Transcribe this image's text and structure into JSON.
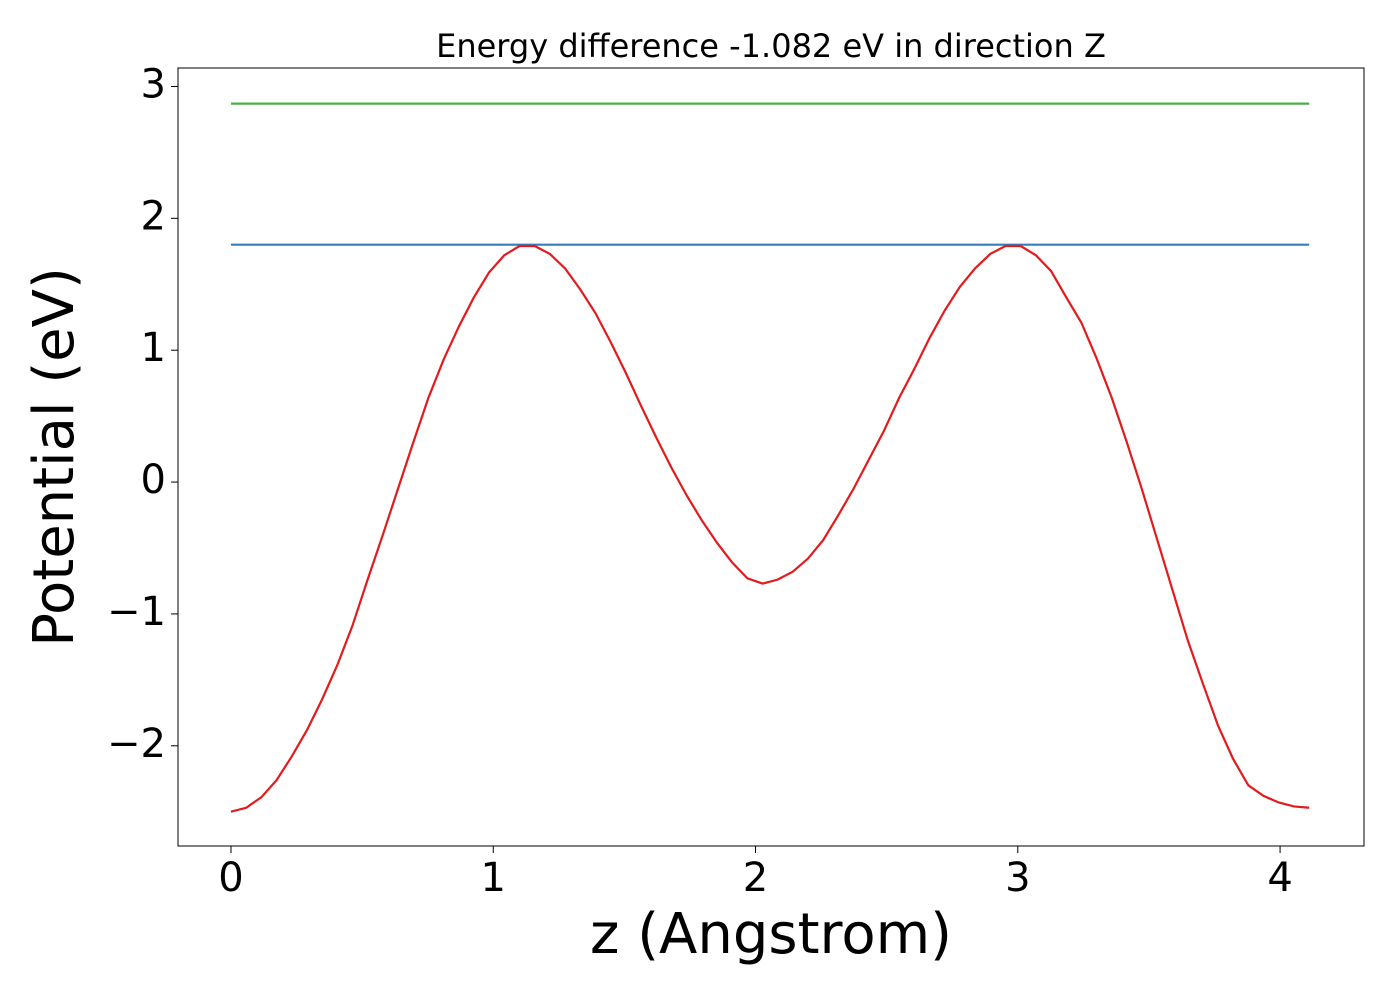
{
  "chart_data": {
    "type": "line",
    "title": "Energy difference -1.082 eV in direction Z",
    "x_label": "z (Angstrom)",
    "y_label": "Potential (eV)",
    "xlim": [
      -0.202,
      4.32
    ],
    "ylim": [
      -2.76,
      3.14
    ],
    "xticks": [
      0,
      1,
      2,
      3,
      4
    ],
    "yticks": [
      {
        "value": -2,
        "label": "−2"
      },
      {
        "value": -1,
        "label": "−1"
      },
      0,
      1,
      2,
      3
    ],
    "series": [
      {
        "color": "#377eb8",
        "x": [
          0,
          4.111
        ],
        "values": [
          1.8,
          1.8
        ]
      },
      {
        "color": "#4daf4a",
        "x": [
          0,
          4.111
        ],
        "values": [
          2.87,
          2.87
        ]
      },
      {
        "color": "#e41a1c",
        "x": [
          0,
          0.058,
          0.116,
          0.174,
          0.232,
          0.29,
          0.347,
          0.405,
          0.463,
          0.521,
          0.579,
          0.637,
          0.695,
          0.753,
          0.811,
          0.869,
          0.926,
          0.984,
          1.042,
          1.1,
          1.158,
          1.216,
          1.274,
          1.332,
          1.39,
          1.448,
          1.505,
          1.563,
          1.621,
          1.679,
          1.737,
          1.795,
          1.853,
          1.911,
          1.969,
          2.027,
          2.084,
          2.142,
          2.2,
          2.258,
          2.316,
          2.374,
          2.432,
          2.49,
          2.548,
          2.606,
          2.663,
          2.721,
          2.779,
          2.837,
          2.895,
          2.953,
          3.011,
          3.069,
          3.127,
          3.185,
          3.242,
          3.3,
          3.358,
          3.416,
          3.474,
          3.532,
          3.59,
          3.648,
          3.706,
          3.764,
          3.821,
          3.879,
          3.937,
          3.995,
          4.053,
          4.111
        ],
        "values": [
          -2.5,
          -2.47,
          -2.39,
          -2.26,
          -2.08,
          -1.88,
          -1.65,
          -1.39,
          -1.09,
          -0.74,
          -0.4,
          -0.05,
          0.3,
          0.64,
          0.93,
          1.18,
          1.4,
          1.59,
          1.72,
          1.79,
          1.79,
          1.73,
          1.62,
          1.46,
          1.28,
          1.06,
          0.83,
          0.58,
          0.34,
          0.11,
          -0.1,
          -0.29,
          -0.46,
          -0.61,
          -0.73,
          -0.77,
          -0.74,
          -0.68,
          -0.58,
          -0.44,
          -0.25,
          -0.05,
          0.17,
          0.39,
          0.64,
          0.86,
          1.09,
          1.3,
          1.48,
          1.62,
          1.73,
          1.79,
          1.79,
          1.72,
          1.6,
          1.4,
          1.21,
          0.94,
          0.64,
          0.3,
          -0.06,
          -0.44,
          -0.82,
          -1.2,
          -1.53,
          -1.85,
          -2.1,
          -2.3,
          -2.38,
          -2.43,
          -2.46,
          -2.47
        ]
      }
    ]
  }
}
